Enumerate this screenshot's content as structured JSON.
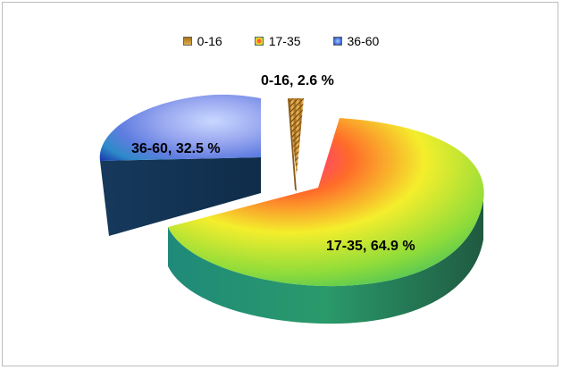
{
  "chart_data": {
    "type": "pie",
    "style": "3d-exploded",
    "title": "",
    "categories": [
      "0-16",
      "17-35",
      "36-60"
    ],
    "values": [
      2.6,
      64.9,
      32.5
    ],
    "unit": "%",
    "data_labels": [
      "0-16, 2.6 %",
      "17-35, 64.9 %",
      "36-60, 32.5 %"
    ],
    "legend": {
      "position": "top",
      "items": [
        "0-16",
        "17-35",
        "36-60"
      ]
    },
    "colors": [
      "#c8902a",
      "#e8e93a",
      "#3a6fd8"
    ]
  }
}
